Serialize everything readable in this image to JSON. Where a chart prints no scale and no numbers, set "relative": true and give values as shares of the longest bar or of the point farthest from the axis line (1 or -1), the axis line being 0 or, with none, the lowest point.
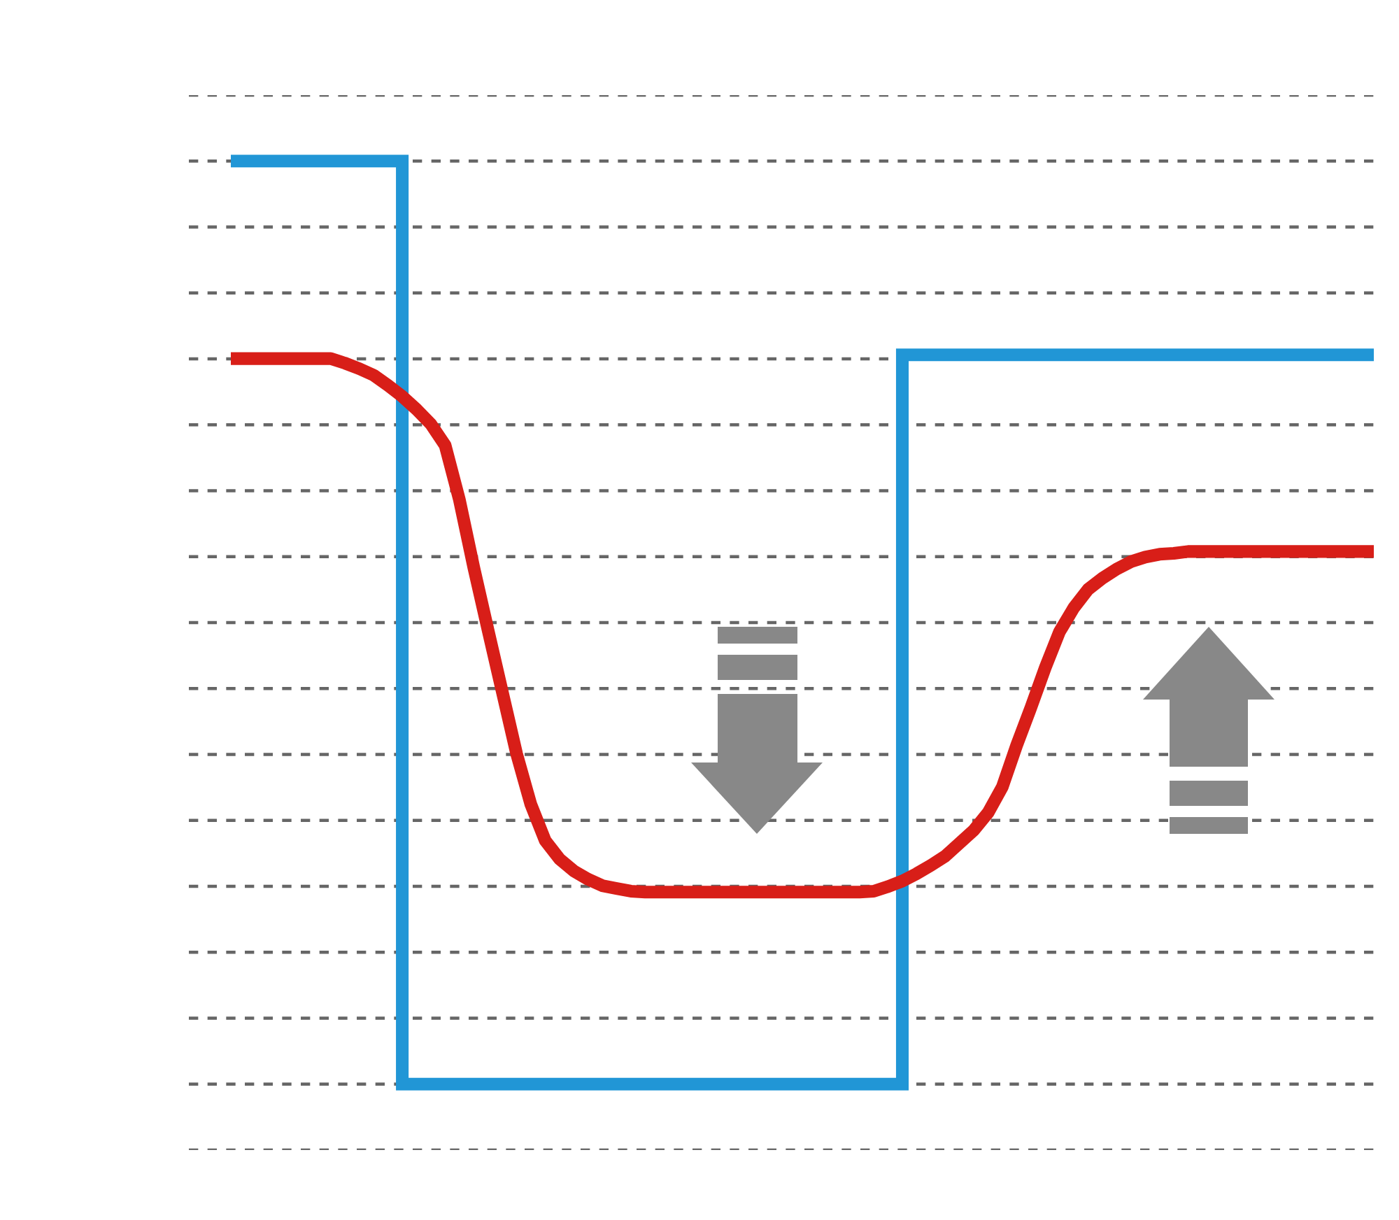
{
  "chart_data": {
    "type": "line",
    "relative": true,
    "grid": "y",
    "categories": [
      null,
      null,
      null,
      null,
      null,
      null,
      null,
      null,
      null,
      null,
      null,
      null,
      null,
      null,
      null,
      null,
      null,
      null,
      null,
      null,
      null,
      null,
      null,
      null,
      null,
      null,
      null,
      null,
      null,
      null,
      null,
      null,
      null,
      null,
      null,
      null,
      null,
      null,
      null,
      null,
      null,
      null,
      null,
      null,
      null,
      null,
      null,
      null,
      null,
      null,
      null,
      null,
      null,
      null,
      null,
      null,
      null,
      null,
      null,
      null,
      null,
      null,
      null,
      null,
      null,
      null,
      null,
      null,
      null,
      null,
      null,
      null,
      null,
      null,
      null,
      null,
      null,
      null,
      null,
      null,
      null
    ],
    "series": [
      {
        "type": "step",
        "color": "#2196d6",
        "values": [
          1,
          1,
          1,
          1,
          1,
          1,
          1,
          1,
          1,
          1,
          1,
          1,
          0,
          0,
          0,
          0,
          0,
          0,
          0,
          0,
          0,
          0,
          0,
          0,
          0,
          0,
          0,
          0,
          0,
          0,
          0,
          0,
          0,
          0,
          0,
          0,
          0,
          0,
          0,
          0,
          0,
          0,
          0,
          0,
          0,
          0,
          0,
          0.79,
          0.79,
          0.79,
          0.79,
          0.79,
          0.79,
          0.79,
          0.79,
          0.79,
          0.79,
          0.79,
          0.79,
          0.79,
          0.79,
          0.79,
          0.79,
          0.79,
          0.79,
          0.79,
          0.79,
          0.79,
          0.79,
          0.79,
          0.79,
          0.79,
          0.79,
          0.79,
          0.79,
          0.79,
          0.79,
          0.79,
          0.79,
          0.79,
          0.79
        ]
      },
      {
        "color": "#d81e18",
        "values": [
          0.786,
          0.786,
          0.786,
          0.786,
          0.786,
          0.786,
          0.786,
          0.786,
          0.781,
          0.775,
          0.768,
          0.757,
          0.745,
          0.731,
          0.715,
          0.692,
          0.633,
          0.56,
          0.492,
          0.425,
          0.358,
          0.303,
          0.264,
          0.244,
          0.231,
          0.222,
          0.215,
          0.212,
          0.209,
          0.208,
          0.208,
          0.208,
          0.208,
          0.208,
          0.208,
          0.208,
          0.208,
          0.208,
          0.208,
          0.208,
          0.208,
          0.208,
          0.208,
          0.208,
          0.208,
          0.209,
          0.214,
          0.22,
          0.228,
          0.237,
          0.247,
          0.261,
          0.275,
          0.294,
          0.322,
          0.367,
          0.408,
          0.451,
          0.49,
          0.516,
          0.536,
          0.548,
          0.558,
          0.566,
          0.571,
          0.574,
          0.575,
          0.577,
          0.577,
          0.577,
          0.577,
          0.577,
          0.577,
          0.577,
          0.577,
          0.577,
          0.577,
          0.577,
          0.577,
          0.577,
          0.577
        ]
      }
    ]
  }
}
